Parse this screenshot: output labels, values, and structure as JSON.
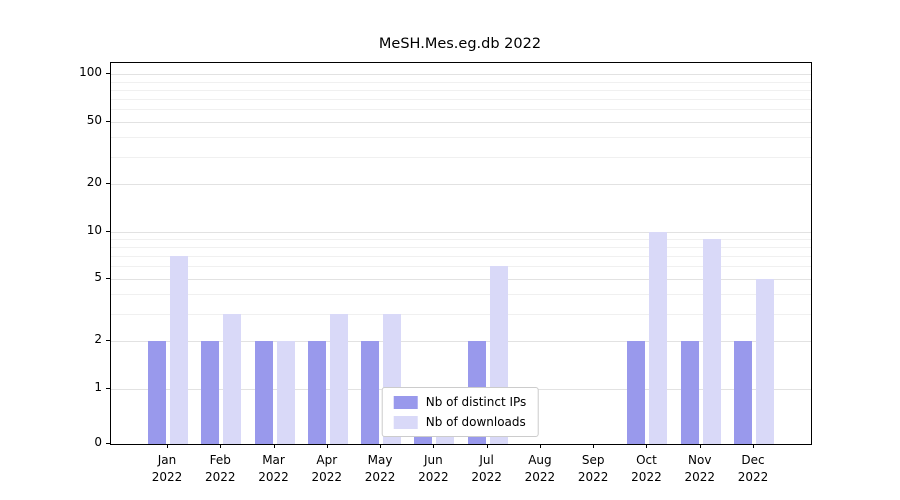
{
  "chart_data": {
    "type": "bar",
    "title": "MeSH.Mes.eg.db 2022",
    "categories": [
      "Jan 2022",
      "Feb 2022",
      "Mar 2022",
      "Apr 2022",
      "May 2022",
      "Jun 2022",
      "Jul 2022",
      "Aug 2022",
      "Sep 2022",
      "Oct 2022",
      "Nov 2022",
      "Dec 2022"
    ],
    "y_ticks": [
      0,
      1,
      2,
      5,
      10,
      20,
      50,
      100
    ],
    "y_scale": "symlog",
    "grid": "horizontal",
    "legend_position": "lower center",
    "series": [
      {
        "name": "Nb of distinct IPs",
        "color": "#9999ec",
        "values": [
          2,
          2,
          2,
          2,
          2,
          1,
          2,
          0,
          0,
          2,
          2,
          2
        ]
      },
      {
        "name": "Nb of downloads",
        "color": "#d9d9f8",
        "values": [
          7,
          3,
          2,
          3,
          3,
          1,
          6,
          0,
          0,
          10,
          9,
          5
        ]
      }
    ]
  }
}
